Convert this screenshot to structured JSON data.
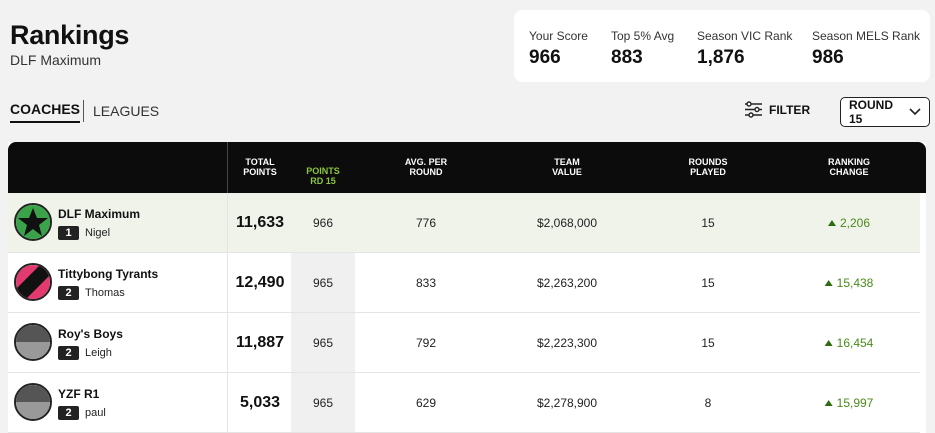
{
  "header": {
    "title": "Rankings",
    "subtitle": "DLF Maximum"
  },
  "stats": [
    {
      "label": "Your Score",
      "value": "966"
    },
    {
      "label": "Top 5% Avg",
      "value": "883"
    },
    {
      "label": "Season VIC Rank",
      "value": "1,876"
    },
    {
      "label": "Season MELS Rank",
      "value": "986"
    }
  ],
  "tabs": {
    "coaches": "COACHES",
    "leagues": "LEAGUES"
  },
  "toolbar": {
    "filter_label": "FILTER",
    "round_label": "ROUND 15"
  },
  "columns": {
    "total_points": "TOTAL\nPOINTS",
    "points_round": "POINTS\nRD 15",
    "avg_per_round": "AVG. PER\nROUND",
    "team_value": "TEAM\nVALUE",
    "rounds_played": "ROUNDS\nPLAYED",
    "ranking_change": "RANKING\nCHANGE"
  },
  "rows": [
    {
      "team": "DLF Maximum",
      "rank": "1",
      "coach": "Nigel",
      "total": "11,633",
      "round_pts": "966",
      "avg": "776",
      "value": "$2,068,000",
      "played": "15",
      "change": "2,206"
    },
    {
      "team": "Tittybong Tyrants",
      "rank": "2",
      "coach": "Thomas",
      "total": "12,490",
      "round_pts": "965",
      "avg": "833",
      "value": "$2,263,200",
      "played": "15",
      "change": "15,438"
    },
    {
      "team": "Roy's Boys",
      "rank": "2",
      "coach": "Leigh",
      "total": "11,887",
      "round_pts": "965",
      "avg": "792",
      "value": "$2,223,300",
      "played": "15",
      "change": "16,454"
    },
    {
      "team": "YZF R1",
      "rank": "2",
      "coach": "paul",
      "total": "5,033",
      "round_pts": "965",
      "avg": "629",
      "value": "$2,278,900",
      "played": "8",
      "change": "15,997"
    }
  ],
  "colors": {
    "accent_green": "#8dc63f",
    "change_green": "#4a8a1a",
    "header_black": "#0c0c0c"
  },
  "icons": {
    "filter": "sliders-icon",
    "round_dropdown": "chevron-down-icon",
    "sort": "chevron-down-icon",
    "change": "up-arrow-icon"
  }
}
